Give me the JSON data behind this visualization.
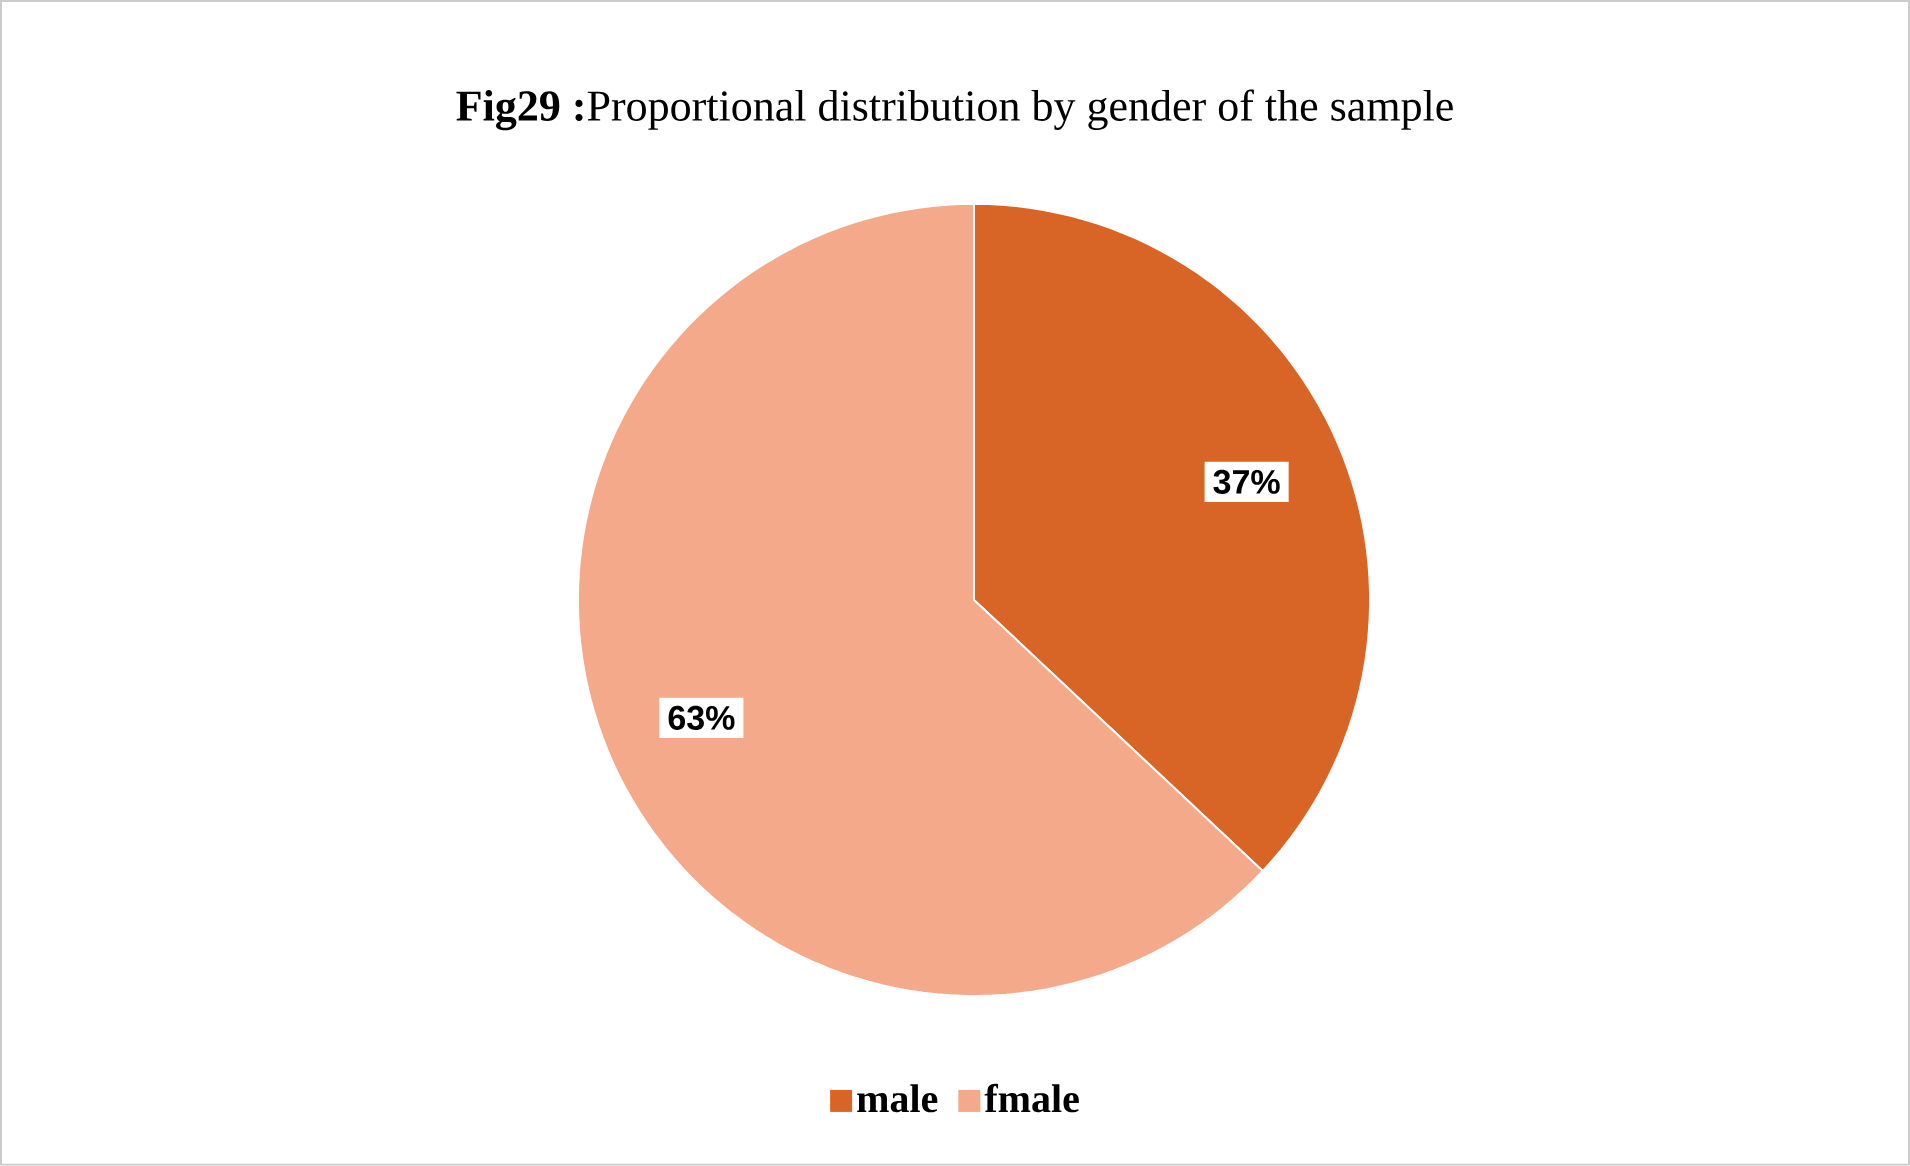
{
  "chart_data": {
    "type": "pie",
    "title": "**Fig29 :**Proportional distribution by gender of the sample",
    "categories": [
      "male",
      "fmale"
    ],
    "values": [
      37,
      63
    ],
    "colors": [
      "#d86526",
      "#f4a98a"
    ],
    "value_labels": [
      "37%",
      "63%"
    ],
    "legend": "bottom"
  }
}
